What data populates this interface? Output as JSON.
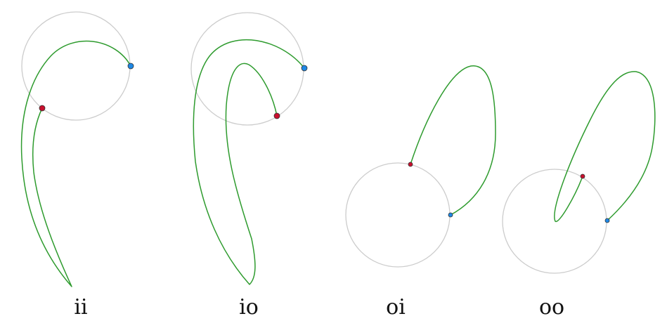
{
  "colors": {
    "circle": "#cccccc",
    "curve": "#2e9b2e",
    "start_point": "#c8102e",
    "end_point": "#1e88e5"
  },
  "panels": [
    {
      "id": "ii",
      "label": "ii"
    },
    {
      "id": "io",
      "label": "io"
    },
    {
      "id": "oi",
      "label": "oi"
    },
    {
      "id": "oo",
      "label": "oo"
    }
  ]
}
